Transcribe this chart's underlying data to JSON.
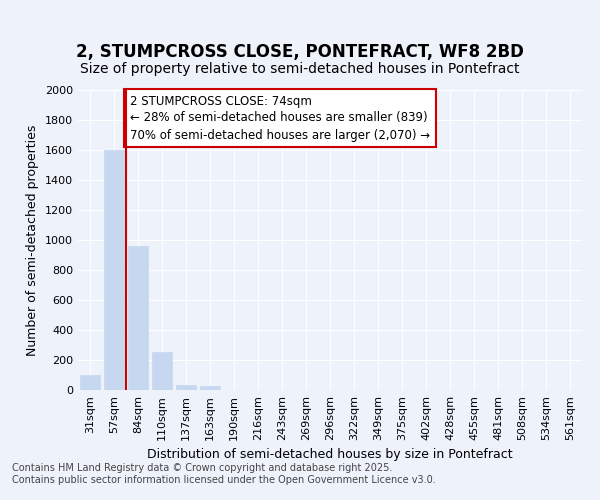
{
  "title_line1": "2, STUMPCROSS CLOSE, PONTEFRACT, WF8 2BD",
  "title_line2": "Size of property relative to semi-detached houses in Pontefract",
  "xlabel": "Distribution of semi-detached houses by size in Pontefract",
  "ylabel": "Number of semi-detached properties",
  "categories": [
    "31sqm",
    "57sqm",
    "84sqm",
    "110sqm",
    "137sqm",
    "163sqm",
    "190sqm",
    "216sqm",
    "243sqm",
    "269sqm",
    "296sqm",
    "322sqm",
    "349sqm",
    "375sqm",
    "402sqm",
    "428sqm",
    "455sqm",
    "481sqm",
    "508sqm",
    "534sqm",
    "561sqm"
  ],
  "values": [
    100,
    1600,
    960,
    255,
    35,
    30,
    0,
    0,
    0,
    0,
    0,
    0,
    0,
    0,
    0,
    0,
    0,
    0,
    0,
    0,
    0
  ],
  "bar_color": "#c5d8f0",
  "bar_edgecolor": "#c5d8f0",
  "vline_color": "#cc0000",
  "vline_xindex": 1.5,
  "annotation_text": "2 STUMPCROSS CLOSE: 74sqm\n← 28% of semi-detached houses are smaller (839)\n70% of semi-detached houses are larger (2,070) →",
  "annotation_box_edgecolor": "#cc0000",
  "ylim": [
    0,
    2000
  ],
  "yticks": [
    0,
    200,
    400,
    600,
    800,
    1000,
    1200,
    1400,
    1600,
    1800,
    2000
  ],
  "footer_text": "Contains HM Land Registry data © Crown copyright and database right 2025.\nContains public sector information licensed under the Open Government Licence v3.0.",
  "background_color": "#eef2fb",
  "plot_background": "#eef2fb",
  "grid_color": "#ffffff",
  "title_fontsize": 12,
  "subtitle_fontsize": 10,
  "tick_fontsize": 8,
  "label_fontsize": 9,
  "annotation_fontsize": 8.5,
  "footer_fontsize": 7
}
